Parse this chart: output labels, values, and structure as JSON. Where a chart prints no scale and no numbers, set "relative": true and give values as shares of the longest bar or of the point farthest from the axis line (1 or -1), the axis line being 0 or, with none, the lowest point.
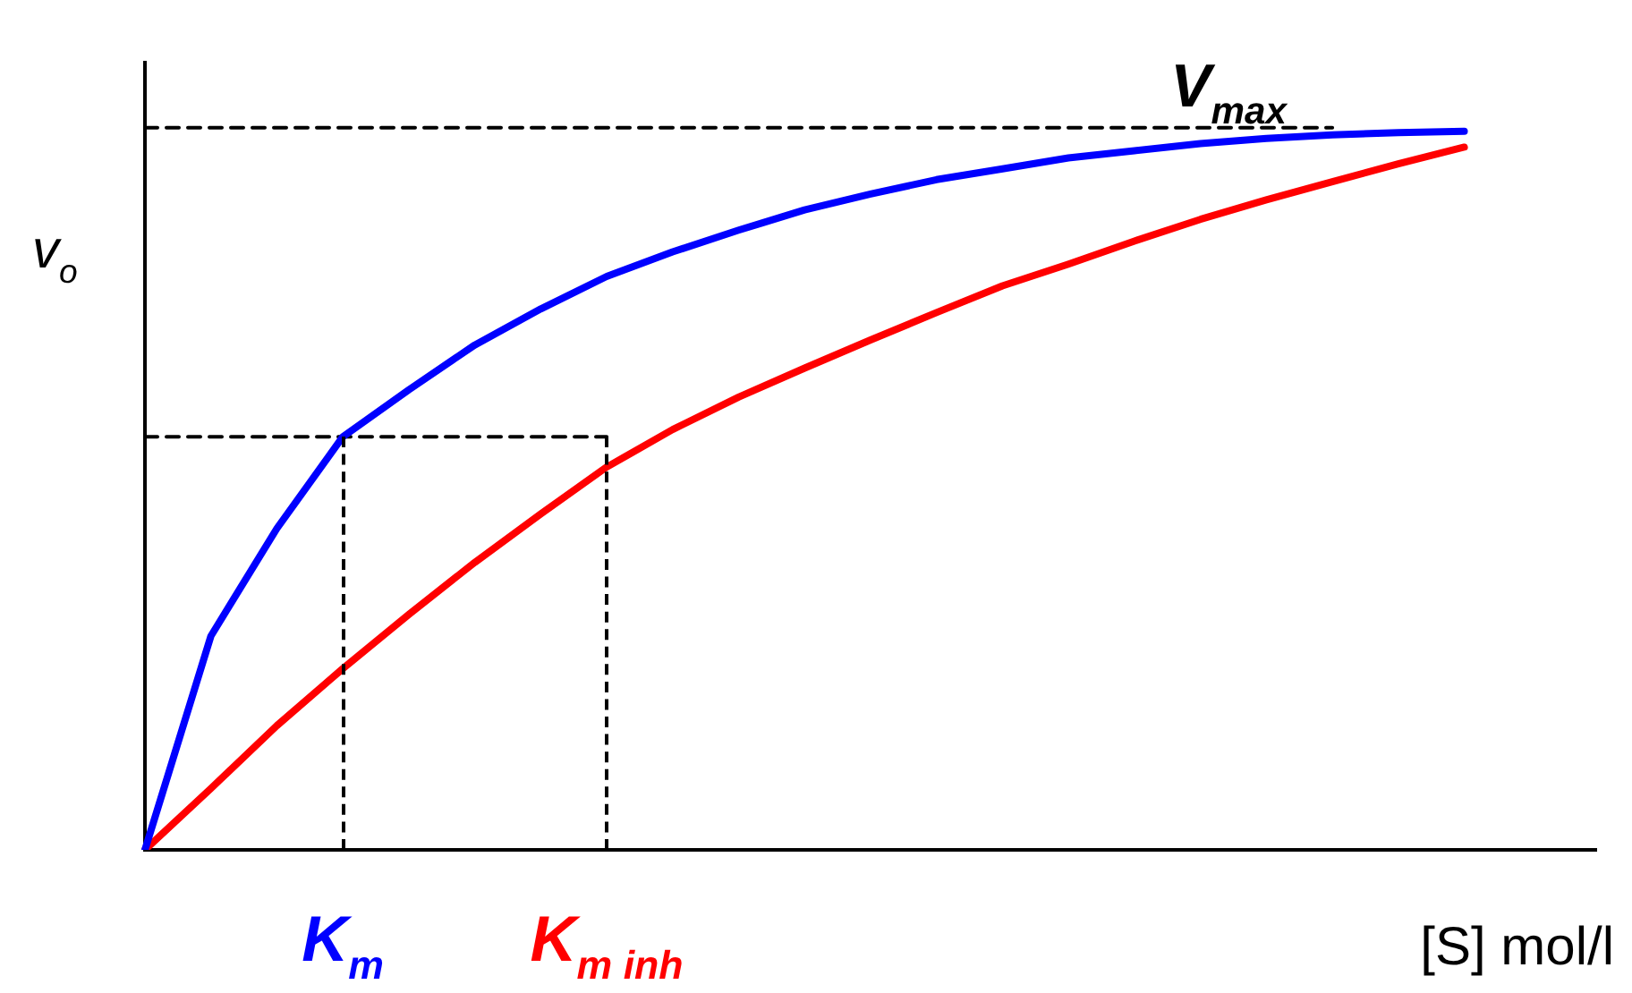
{
  "chart_data": {
    "type": "line",
    "relative": true,
    "xlabel": "[S] mol/l",
    "ylabel": "v$_{o}$",
    "marker": "none",
    "legend": false,
    "grid": false,
    "categories": [
      null,
      null,
      null,
      null,
      null,
      null,
      null,
      null,
      null,
      null,
      null,
      null,
      null,
      null,
      null,
      null,
      null,
      null,
      null,
      null,
      null,
      null,
      null
    ],
    "series": [
      {
        "color": "#0000ff",
        "values": [
          0,
          0.296,
          0.445,
          0.572,
          0.637,
          0.699,
          0.749,
          0.794,
          0.828,
          0.858,
          0.886,
          0.908,
          0.928,
          0.943,
          0.958,
          0.968,
          0.978,
          0.985,
          0.99,
          0.993,
          0.995,
          null,
          null
        ]
      },
      {
        "color": "#ff0000",
        "values": [
          0,
          0.085,
          0.172,
          0.251,
          0.326,
          0.398,
          0.465,
          0.53,
          0.582,
          0.627,
          0.667,
          0.706,
          0.744,
          0.781,
          0.811,
          0.843,
          0.873,
          0.9,
          0.925,
          0.95,
          0.973,
          null,
          null
        ]
      },
      {
        "color": "#000000",
        "line_style": "dashed",
        "values": [
          1,
          1,
          1,
          1,
          1,
          1,
          1,
          1,
          1,
          1,
          1,
          1,
          1,
          1,
          1,
          1,
          1,
          1,
          1,
          null,
          null,
          null,
          null
        ]
      },
      {
        "color": "#000000",
        "line_style": "dashed",
        "values": [
          0.572,
          0.572,
          0.572,
          0.572,
          0.572,
          0.572,
          0.572,
          0.572,
          null,
          null,
          null,
          null,
          null,
          null,
          null,
          null,
          null,
          null,
          null,
          null,
          null,
          null,
          null
        ]
      }
    ],
    "annotations": [
      "V$_{max}$",
      "K$_{m}$",
      "K$_{m inh}$"
    ]
  }
}
